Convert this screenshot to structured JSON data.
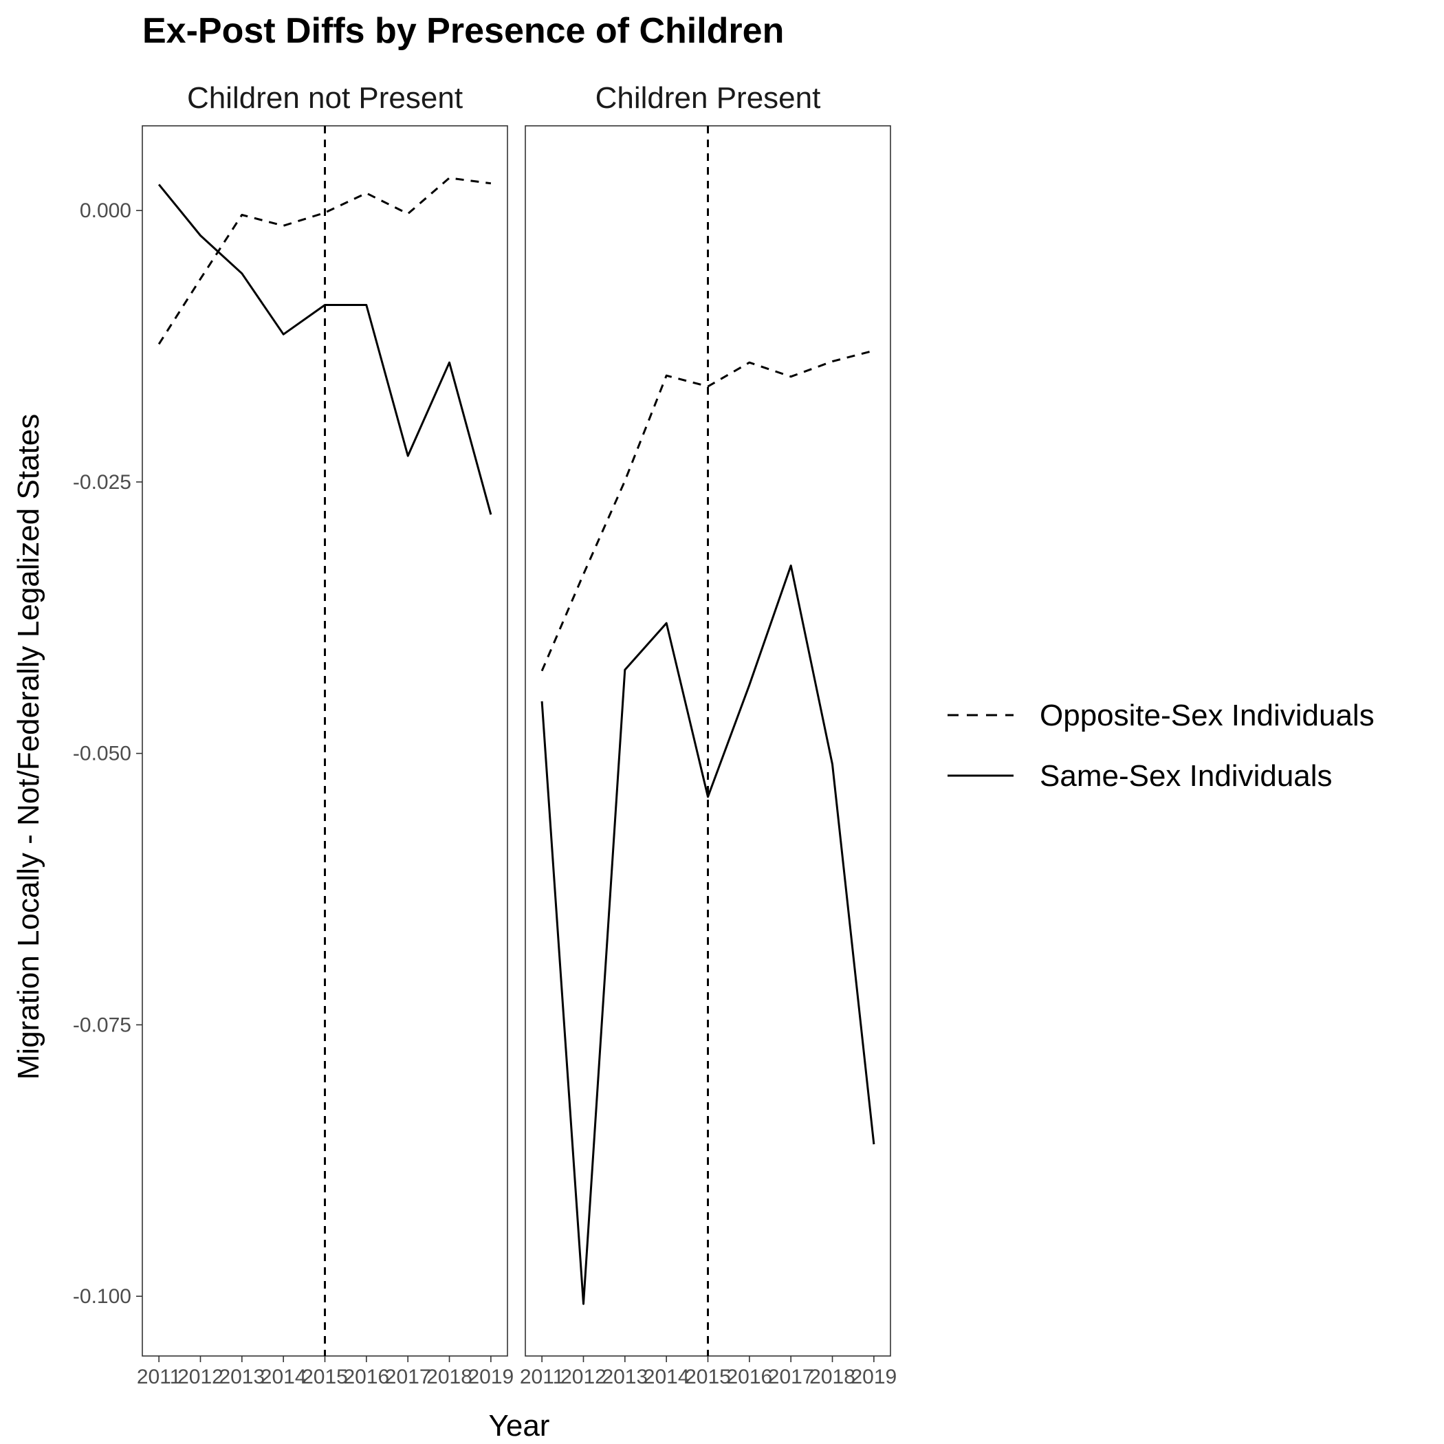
{
  "chart_data": {
    "type": "line",
    "title": "Ex-Post Diffs by Presence of Children",
    "xlabel": "Year",
    "ylabel": "Migration Locally - Not/Federally Legalized States",
    "x": [
      2011,
      2012,
      2013,
      2014,
      2015,
      2016,
      2017,
      2018,
      2019
    ],
    "xlim": [
      2010.6,
      2019.4
    ],
    "ylim": [
      -0.1055,
      0.0078
    ],
    "yticks": [
      0.0,
      -0.025,
      -0.05,
      -0.075,
      -0.1
    ],
    "ytick_labels": [
      "0.000",
      "-0.025",
      "-0.050",
      "-0.075",
      "-0.100"
    ],
    "xtick_labels": [
      "2011",
      "2012",
      "2013",
      "2014",
      "2015",
      "2016",
      "2017",
      "2018",
      "2019"
    ],
    "vline_x": 2015,
    "grid": false,
    "legend_position": "right",
    "legend": [
      {
        "name": "Opposite-Sex Individuals",
        "linetype": "dashed"
      },
      {
        "name": "Same-Sex Individuals",
        "linetype": "solid"
      }
    ],
    "panels": [
      {
        "strip": "Children not Present",
        "series": [
          {
            "name": "Opposite-Sex Individuals",
            "linetype": "dashed",
            "values": [
              -0.0123,
              -0.0063,
              -0.0004,
              -0.0014,
              -0.0002,
              0.0016,
              -0.0003,
              0.003,
              0.0025
            ]
          },
          {
            "name": "Same-Sex Individuals",
            "linetype": "solid",
            "values": [
              0.0024,
              -0.0023,
              -0.0058,
              -0.0114,
              -0.0087,
              -0.0087,
              -0.0226,
              -0.014,
              -0.028
            ]
          }
        ]
      },
      {
        "strip": "Children Present",
        "series": [
          {
            "name": "Opposite-Sex Individuals",
            "linetype": "dashed",
            "values": [
              -0.0424,
              -0.0335,
              -0.0249,
              -0.0152,
              -0.0162,
              -0.014,
              -0.0153,
              -0.0139,
              -0.0129
            ]
          },
          {
            "name": "Same-Sex Individuals",
            "linetype": "solid",
            "values": [
              -0.0452,
              -0.1007,
              -0.0423,
              -0.038,
              -0.054,
              -0.0437,
              -0.0327,
              -0.051,
              -0.086
            ]
          }
        ]
      }
    ]
  }
}
